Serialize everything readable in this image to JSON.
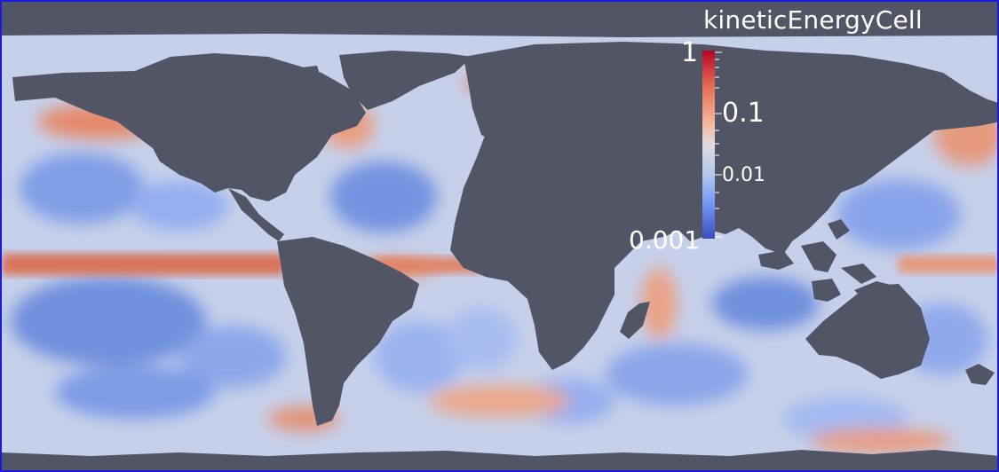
{
  "legend": {
    "title": "kineticEnergyCell",
    "ticks": [
      "1",
      "0.1",
      "0.01",
      "0.001"
    ],
    "colormap": [
      "#b40426",
      "#e26952",
      "#f6b59a",
      "#dddddd",
      "#b3c7ee",
      "#7a9df8",
      "#3b4cc0"
    ],
    "scale": "log",
    "range": [
      0.001,
      1
    ]
  },
  "colors": {
    "land": "#525566",
    "ocean_base": "#c9d3ea",
    "border": "#1a1adf"
  }
}
